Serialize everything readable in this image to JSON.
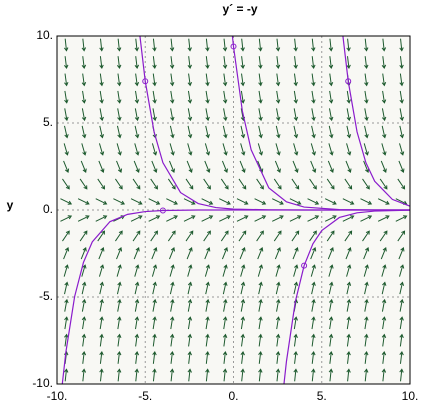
{
  "chart_data": {
    "type": "slope-field",
    "title": "y´ = -y",
    "ylabel": "y",
    "xlim": [
      -10,
      10
    ],
    "ylim": [
      -10,
      10
    ],
    "xticks": [
      {
        "value": -10,
        "label": "-10."
      },
      {
        "value": -5,
        "label": "-5."
      },
      {
        "value": 0,
        "label": "0."
      },
      {
        "value": 5,
        "label": "5."
      },
      {
        "value": 10,
        "label": "10."
      }
    ],
    "yticks": [
      {
        "value": -10,
        "label": "-10."
      },
      {
        "value": -5,
        "label": "-5."
      },
      {
        "value": 0,
        "label": "0."
      },
      {
        "value": 5,
        "label": "5."
      },
      {
        "value": 10,
        "label": "10."
      }
    ],
    "grid": true,
    "field": {
      "color": "#1d5a2e",
      "x": [
        -9.5,
        -8.5,
        -7.5,
        -6.5,
        -5.5,
        -4.5,
        -3.5,
        -2.5,
        -1.5,
        -0.5,
        0.5,
        1.5,
        2.5,
        3.5,
        4.5,
        5.5,
        6.5,
        7.5,
        8.5,
        9.5
      ],
      "y": [
        -9.5,
        -8.5,
        -7.5,
        -6.5,
        -5.5,
        -4.5,
        -3.5,
        -2.5,
        -1.5,
        -0.5,
        0.5,
        1.5,
        2.5,
        3.5,
        4.5,
        5.5,
        6.5,
        7.5,
        8.5,
        9.5
      ],
      "slopes": [
        9.5,
        8.5,
        7.5,
        6.5,
        5.5,
        4.5,
        3.5,
        2.5,
        1.5,
        0.5,
        -0.5,
        -1.5,
        -2.5,
        -3.5,
        -4.5,
        -5.5,
        -6.5,
        -7.5,
        -8.5,
        -9.5
      ]
    },
    "series": [
      {
        "color": "#8a1ccc",
        "x": [
          -5.3,
          -5,
          -4.5,
          -4,
          -3,
          -2,
          -1,
          0,
          2,
          4,
          6,
          8,
          10
        ],
        "values": [
          9.99,
          7.4,
          4.49,
          2.72,
          1.0,
          0.37,
          0.14,
          0.05,
          0.01,
          0,
          0,
          0,
          0
        ]
      },
      {
        "color": "#8a1ccc",
        "x": [
          -0.06,
          0,
          0.5,
          1,
          2,
          3,
          4,
          6,
          8,
          10
        ],
        "values": [
          9.98,
          9.4,
          5.7,
          3.46,
          1.27,
          0.47,
          0.17,
          0.02,
          0,
          0
        ]
      },
      {
        "color": "#8a1ccc",
        "x": [
          6.2,
          6.5,
          7,
          7.5,
          8,
          9,
          10
        ],
        "values": [
          9.99,
          7.4,
          4.49,
          2.72,
          1.65,
          0.61,
          0.22
        ]
      },
      {
        "color": "#8a1ccc",
        "x": [
          -9.7,
          -9.5,
          -9,
          -8.5,
          -8,
          -7,
          -6,
          -5,
          -4,
          -2,
          0,
          5,
          10
        ],
        "values": [
          -10,
          -8.19,
          -4.97,
          -3.01,
          -1.83,
          -0.67,
          -0.25,
          -0.09,
          -0.03,
          0,
          0,
          0,
          0
        ]
      },
      {
        "color": "#8a1ccc",
        "x": [
          2.86,
          3,
          3.5,
          4,
          4.5,
          5,
          6,
          7,
          8,
          10
        ],
        "values": [
          -9.99,
          -8.7,
          -5.28,
          -3.2,
          -1.94,
          -1.18,
          -0.43,
          -0.16,
          -0.06,
          -0.01
        ]
      }
    ],
    "initial_points": {
      "color": "#8a1ccc",
      "x": [
        -5,
        0,
        6.5,
        -4,
        4
      ],
      "y": [
        7.4,
        9.4,
        7.4,
        -0.03,
        -3.2
      ]
    }
  }
}
